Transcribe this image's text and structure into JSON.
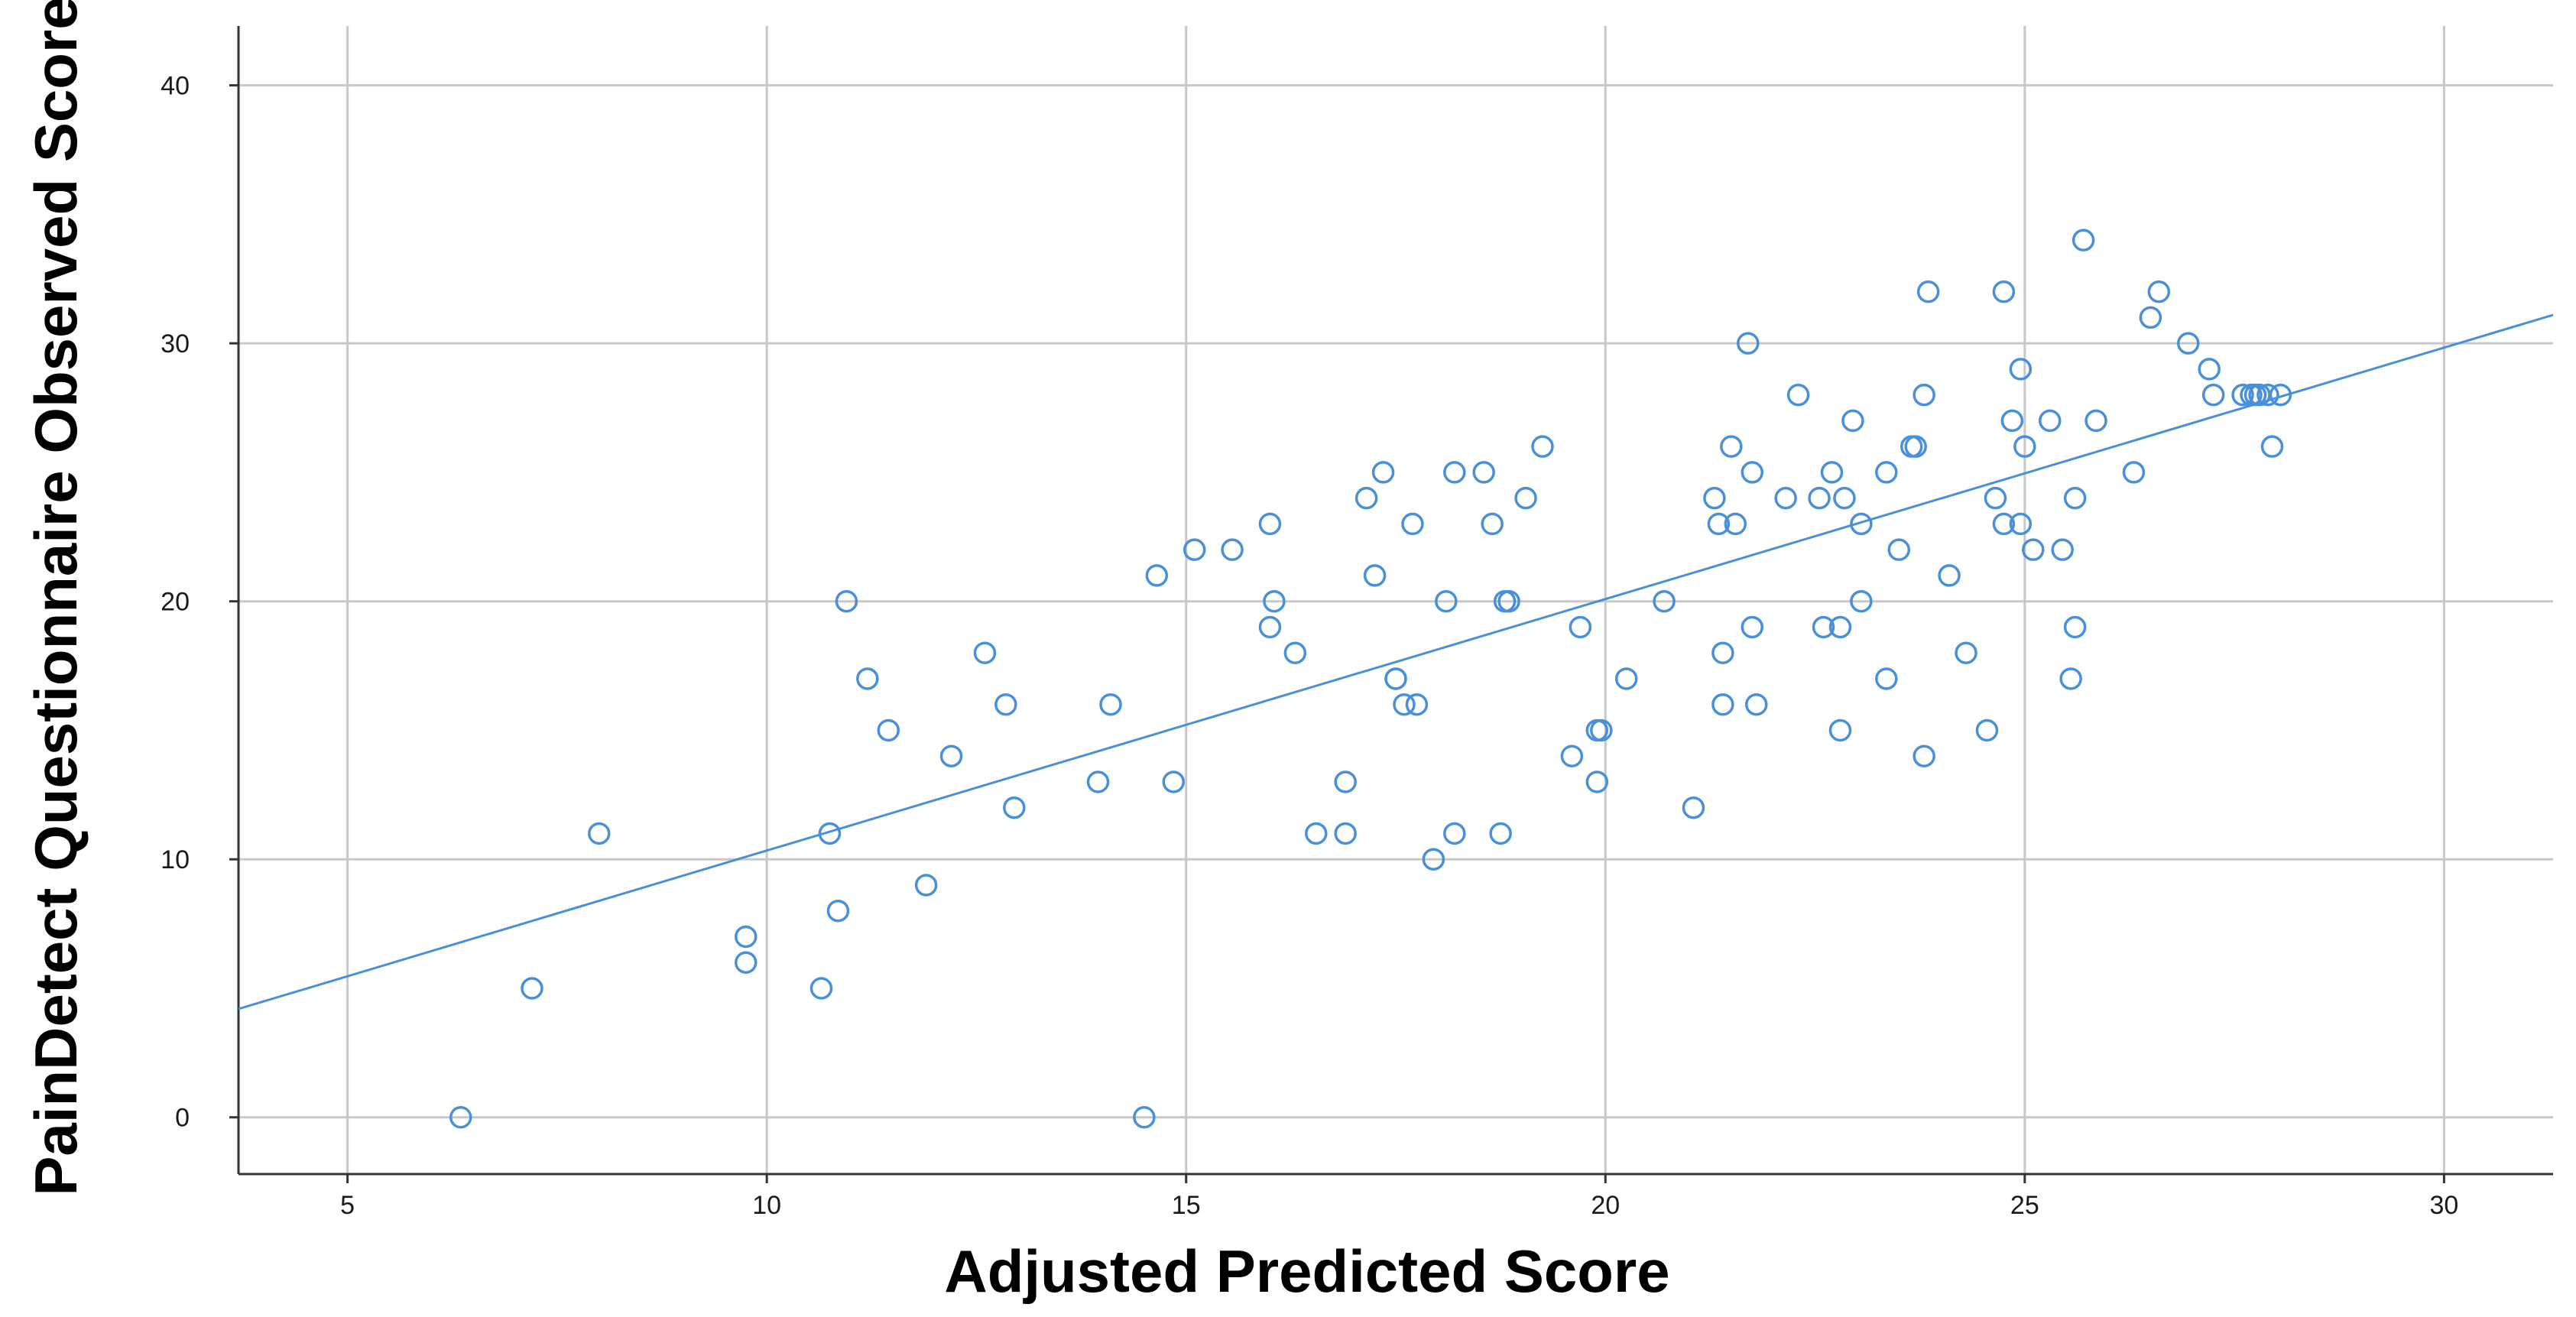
{
  "chart_data": {
    "type": "scatter",
    "title": "",
    "xlabel": "Adjusted Predicted Score",
    "ylabel": "PainDetect Questionnaire Observed Score",
    "xlim": [
      3.7,
      31.3
    ],
    "ylim": [
      -2.2,
      42.3
    ],
    "xticks": [
      "5",
      "10",
      "15",
      "20",
      "25",
      "30"
    ],
    "yticks": [
      "0",
      "10",
      "20",
      "30",
      "40"
    ],
    "grid": true,
    "legend": "none",
    "colors": {
      "point": "#4a90d9",
      "fit_line": "#4a90d9",
      "grid": "#c8c8c8",
      "axis": "#333333"
    },
    "fit_line": {
      "x": [
        3.7,
        31.3
      ],
      "y": [
        4.2,
        31.1
      ]
    },
    "points": [
      [
        6.35,
        0
      ],
      [
        14.5,
        0
      ],
      [
        7.2,
        5
      ],
      [
        9.75,
        6
      ],
      [
        10.65,
        5
      ],
      [
        9.75,
        7
      ],
      [
        10.85,
        8
      ],
      [
        8.0,
        11
      ],
      [
        10.75,
        11
      ],
      [
        11.9,
        9
      ],
      [
        12.95,
        12
      ],
      [
        12.2,
        14
      ],
      [
        11.45,
        15
      ],
      [
        11.2,
        17
      ],
      [
        10.95,
        20
      ],
      [
        12.6,
        18
      ],
      [
        12.85,
        16
      ],
      [
        13.95,
        13
      ],
      [
        14.1,
        16
      ],
      [
        14.85,
        13
      ],
      [
        14.65,
        21
      ],
      [
        15.1,
        22
      ],
      [
        15.55,
        22
      ],
      [
        16.0,
        23
      ],
      [
        16.05,
        20
      ],
      [
        16.0,
        19
      ],
      [
        16.3,
        18
      ],
      [
        16.55,
        11
      ],
      [
        16.9,
        11
      ],
      [
        16.9,
        13
      ],
      [
        17.15,
        24
      ],
      [
        17.35,
        25
      ],
      [
        17.25,
        21
      ],
      [
        17.5,
        17
      ],
      [
        17.5,
        17
      ],
      [
        17.6,
        16
      ],
      [
        17.75,
        16
      ],
      [
        17.7,
        23
      ],
      [
        18.2,
        25
      ],
      [
        18.55,
        25
      ],
      [
        18.65,
        23
      ],
      [
        18.1,
        20
      ],
      [
        17.95,
        10
      ],
      [
        18.2,
        11
      ],
      [
        18.75,
        11
      ],
      [
        18.85,
        20
      ],
      [
        18.8,
        20
      ],
      [
        19.05,
        24
      ],
      [
        19.25,
        26
      ],
      [
        19.6,
        14
      ],
      [
        19.7,
        19
      ],
      [
        19.9,
        15
      ],
      [
        19.9,
        13
      ],
      [
        19.95,
        15
      ],
      [
        20.25,
        17
      ],
      [
        20.7,
        20
      ],
      [
        21.05,
        12
      ],
      [
        21.3,
        24
      ],
      [
        21.35,
        23
      ],
      [
        21.4,
        18
      ],
      [
        21.4,
        16
      ],
      [
        21.5,
        26
      ],
      [
        21.55,
        23
      ],
      [
        21.7,
        30
      ],
      [
        21.75,
        25
      ],
      [
        21.75,
        19
      ],
      [
        21.8,
        16
      ],
      [
        22.15,
        24
      ],
      [
        22.3,
        28
      ],
      [
        22.55,
        24
      ],
      [
        22.6,
        19
      ],
      [
        22.7,
        25
      ],
      [
        22.8,
        19
      ],
      [
        22.85,
        24
      ],
      [
        22.95,
        27
      ],
      [
        22.8,
        15
      ],
      [
        23.05,
        23
      ],
      [
        23.05,
        20
      ],
      [
        23.35,
        25
      ],
      [
        23.35,
        17
      ],
      [
        23.5,
        22
      ],
      [
        23.65,
        26
      ],
      [
        23.7,
        26
      ],
      [
        23.8,
        28
      ],
      [
        23.85,
        32
      ],
      [
        23.8,
        14
      ],
      [
        24.1,
        21
      ],
      [
        24.3,
        18
      ],
      [
        24.55,
        15
      ],
      [
        24.65,
        24
      ],
      [
        24.75,
        32
      ],
      [
        24.75,
        23
      ],
      [
        24.85,
        27
      ],
      [
        24.95,
        23
      ],
      [
        24.95,
        29
      ],
      [
        25.0,
        26
      ],
      [
        25.1,
        22
      ],
      [
        25.3,
        27
      ],
      [
        25.45,
        22
      ],
      [
        25.55,
        17
      ],
      [
        25.6,
        24
      ],
      [
        25.6,
        19
      ],
      [
        25.7,
        34
      ],
      [
        25.85,
        27
      ],
      [
        26.3,
        25
      ],
      [
        26.5,
        31
      ],
      [
        26.6,
        32
      ],
      [
        26.95,
        30
      ],
      [
        27.2,
        29
      ],
      [
        27.25,
        28
      ],
      [
        27.6,
        28
      ],
      [
        27.7,
        28
      ],
      [
        27.75,
        28
      ],
      [
        27.8,
        28
      ],
      [
        27.9,
        28
      ],
      [
        27.95,
        26
      ],
      [
        28.05,
        28
      ]
    ]
  }
}
